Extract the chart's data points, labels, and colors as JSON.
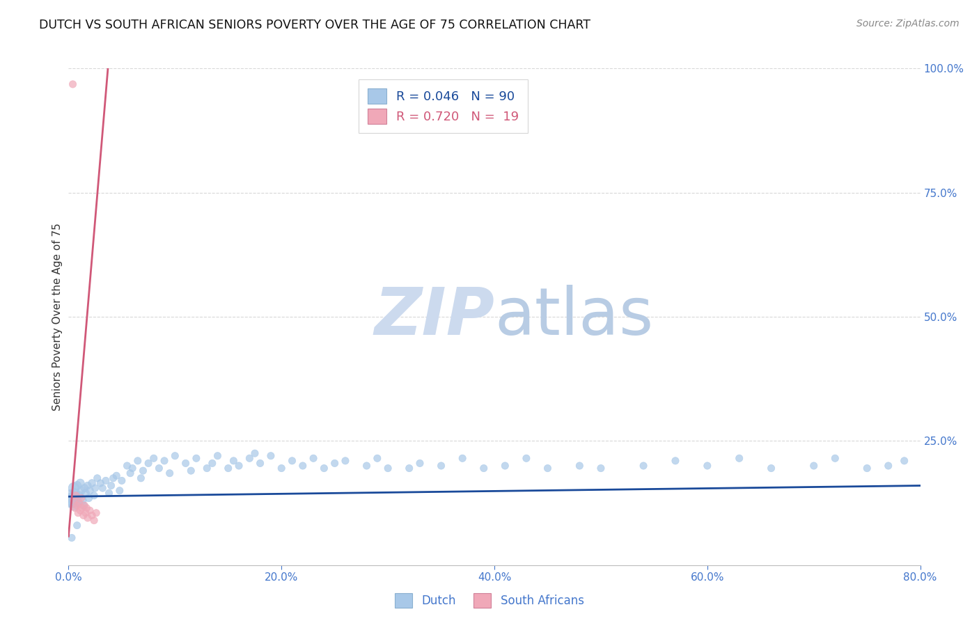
{
  "title": "DUTCH VS SOUTH AFRICAN SENIORS POVERTY OVER THE AGE OF 75 CORRELATION CHART",
  "source": "Source: ZipAtlas.com",
  "ylabel": "Seniors Poverty Over the Age of 75",
  "dutch_color": "#a8c8e8",
  "sa_color": "#f0a8b8",
  "dutch_line_color": "#1a4a9a",
  "sa_line_color": "#d05878",
  "tick_color": "#4477cc",
  "watermark_zip_color": "#c8d8f0",
  "watermark_atlas_color": "#b0c8e8",
  "background_color": "#ffffff",
  "grid_color": "#d8d8d8",
  "dutch_R": 0.046,
  "dutch_N": 90,
  "sa_R": 0.72,
  "sa_N": 19,
  "xlim": [
    0.0,
    0.8
  ],
  "ylim": [
    0.0,
    1.0
  ],
  "dutch_x": [
    0.001,
    0.002,
    0.003,
    0.004,
    0.005,
    0.005,
    0.006,
    0.007,
    0.008,
    0.009,
    0.01,
    0.011,
    0.012,
    0.013,
    0.014,
    0.015,
    0.016,
    0.018,
    0.019,
    0.02,
    0.022,
    0.024,
    0.025,
    0.027,
    0.03,
    0.032,
    0.035,
    0.038,
    0.04,
    0.042,
    0.045,
    0.048,
    0.05,
    0.055,
    0.058,
    0.06,
    0.065,
    0.068,
    0.07,
    0.075,
    0.08,
    0.085,
    0.09,
    0.095,
    0.1,
    0.11,
    0.115,
    0.12,
    0.13,
    0.135,
    0.14,
    0.15,
    0.155,
    0.16,
    0.17,
    0.175,
    0.18,
    0.19,
    0.2,
    0.21,
    0.22,
    0.23,
    0.24,
    0.25,
    0.26,
    0.28,
    0.29,
    0.3,
    0.32,
    0.33,
    0.35,
    0.37,
    0.39,
    0.41,
    0.43,
    0.45,
    0.48,
    0.5,
    0.54,
    0.57,
    0.6,
    0.63,
    0.66,
    0.7,
    0.72,
    0.75,
    0.77,
    0.785,
    0.008,
    0.003
  ],
  "dutch_y": [
    0.13,
    0.14,
    0.135,
    0.125,
    0.155,
    0.12,
    0.145,
    0.135,
    0.16,
    0.125,
    0.14,
    0.165,
    0.15,
    0.13,
    0.12,
    0.155,
    0.145,
    0.16,
    0.135,
    0.15,
    0.165,
    0.14,
    0.155,
    0.175,
    0.165,
    0.155,
    0.17,
    0.145,
    0.16,
    0.175,
    0.18,
    0.15,
    0.17,
    0.2,
    0.185,
    0.195,
    0.21,
    0.175,
    0.19,
    0.205,
    0.215,
    0.195,
    0.21,
    0.185,
    0.22,
    0.205,
    0.19,
    0.215,
    0.195,
    0.205,
    0.22,
    0.195,
    0.21,
    0.2,
    0.215,
    0.225,
    0.205,
    0.22,
    0.195,
    0.21,
    0.2,
    0.215,
    0.195,
    0.205,
    0.21,
    0.2,
    0.215,
    0.195,
    0.195,
    0.205,
    0.2,
    0.215,
    0.195,
    0.2,
    0.215,
    0.195,
    0.2,
    0.195,
    0.2,
    0.21,
    0.2,
    0.215,
    0.195,
    0.2,
    0.215,
    0.195,
    0.2,
    0.21,
    0.08,
    0.055
  ],
  "dutch_size": [
    200,
    150,
    120,
    100,
    130,
    100,
    90,
    90,
    80,
    80,
    80,
    75,
    70,
    70,
    65,
    65,
    65,
    60,
    60,
    60,
    60,
    55,
    55,
    55,
    55,
    55,
    55,
    55,
    55,
    55,
    55,
    55,
    55,
    55,
    55,
    55,
    55,
    55,
    55,
    55,
    55,
    55,
    55,
    55,
    55,
    55,
    55,
    55,
    55,
    55,
    55,
    55,
    55,
    55,
    55,
    55,
    55,
    55,
    55,
    55,
    55,
    55,
    55,
    55,
    55,
    55,
    55,
    55,
    55,
    55,
    55,
    55,
    55,
    55,
    55,
    55,
    55,
    55,
    55,
    55,
    55,
    55,
    55,
    55,
    55,
    55,
    55,
    55,
    55,
    55
  ],
  "sa_x": [
    0.004,
    0.005,
    0.006,
    0.007,
    0.008,
    0.009,
    0.01,
    0.011,
    0.012,
    0.013,
    0.014,
    0.015,
    0.016,
    0.017,
    0.018,
    0.02,
    0.022,
    0.024,
    0.026
  ],
  "sa_y": [
    0.968,
    0.13,
    0.115,
    0.14,
    0.12,
    0.105,
    0.125,
    0.11,
    0.135,
    0.115,
    0.1,
    0.12,
    0.105,
    0.115,
    0.095,
    0.11,
    0.1,
    0.09,
    0.105
  ],
  "sa_size": [
    55,
    55,
    55,
    55,
    55,
    55,
    55,
    55,
    55,
    55,
    55,
    55,
    55,
    55,
    55,
    55,
    55,
    55,
    55
  ],
  "dutch_line_x": [
    0.0,
    0.8
  ],
  "dutch_line_y": [
    0.138,
    0.16
  ],
  "sa_line_x": [
    0.0,
    0.037
  ],
  "sa_line_y": [
    0.058,
    1.0
  ]
}
